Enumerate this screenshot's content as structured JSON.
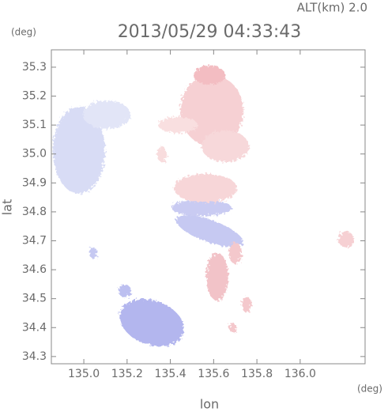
{
  "chart_data": {
    "type": "map",
    "title": "2013/05/29 04:33:43",
    "annotation": "ALT(km) 2.0",
    "y_unit": "(deg)",
    "x_unit": "(deg)",
    "x_label": "lon",
    "y_label": "lat",
    "xlim": [
      134.85,
      136.3
    ],
    "xticks": [
      {
        "value": 135,
        "label": "135.0"
      },
      135.2,
      135.4,
      135.6,
      135.8,
      {
        "value": 136,
        "label": "136.0"
      }
    ],
    "ylim": [
      34.275,
      35.36
    ],
    "yticks": [
      34.3,
      34.4,
      34.5,
      34.6,
      34.7,
      34.8,
      34.9,
      {
        "value": 35,
        "label": "35.0"
      },
      35.1,
      35.2,
      35.3
    ]
  }
}
